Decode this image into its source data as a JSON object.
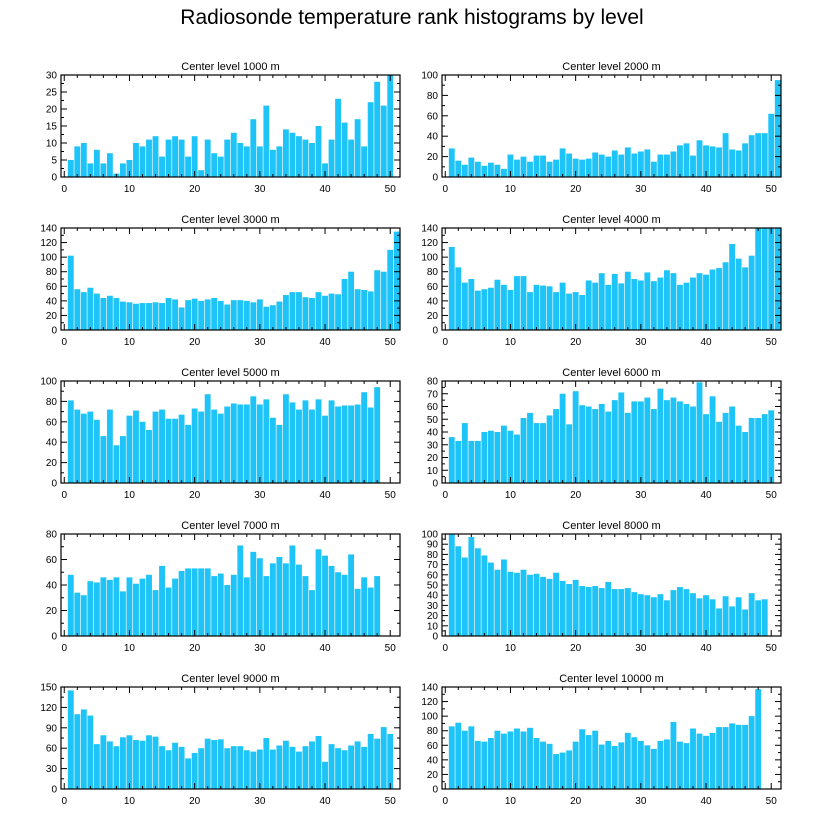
{
  "title": "Radiosonde temperature rank histograms by level",
  "colors": {
    "bar": "#1ec4f7",
    "axis": "#000000"
  },
  "chart_data": [
    {
      "type": "bar",
      "title": "Center level 1000 m",
      "xlim": [
        -0.5,
        51.5
      ],
      "ylim": [
        0,
        30
      ],
      "xticks": [
        0,
        10,
        20,
        30,
        40,
        50
      ],
      "yticks": [
        0,
        5,
        10,
        15,
        20,
        25,
        30
      ],
      "values": [
        5,
        9,
        10,
        4,
        8,
        4,
        7,
        1,
        4,
        5,
        10,
        9,
        11,
        12,
        6,
        11,
        12,
        11,
        6,
        12,
        2,
        11,
        7,
        6,
        11,
        13,
        10,
        9,
        17,
        9,
        21,
        8,
        9,
        14,
        13,
        12,
        11,
        10,
        15,
        4,
        11,
        23,
        16,
        11,
        17,
        9,
        22,
        28,
        21,
        30
      ]
    },
    {
      "type": "bar",
      "title": "Center level 2000 m",
      "xlim": [
        -0.5,
        51.5
      ],
      "ylim": [
        0,
        100
      ],
      "xticks": [
        0,
        10,
        20,
        30,
        40,
        50
      ],
      "yticks": [
        0,
        20,
        40,
        60,
        80,
        100
      ],
      "values": [
        28,
        16,
        12,
        19,
        15,
        11,
        14,
        12,
        8,
        22,
        17,
        20,
        15,
        21,
        21,
        15,
        17,
        28,
        23,
        18,
        17,
        18,
        24,
        22,
        20,
        26,
        22,
        29,
        23,
        25,
        27,
        15,
        22,
        22,
        25,
        31,
        33,
        21,
        36,
        31,
        30,
        29,
        43,
        27,
        26,
        33,
        41,
        43,
        43,
        62,
        95
      ]
    },
    {
      "type": "bar",
      "title": "Center level 3000 m",
      "xlim": [
        -0.5,
        51.5
      ],
      "ylim": [
        0,
        140
      ],
      "xticks": [
        0,
        10,
        20,
        30,
        40,
        50
      ],
      "yticks": [
        0,
        20,
        40,
        60,
        80,
        100,
        120,
        140
      ],
      "values": [
        102,
        56,
        52,
        58,
        50,
        44,
        47,
        44,
        39,
        38,
        36,
        37,
        37,
        38,
        37,
        44,
        42,
        31,
        41,
        43,
        40,
        42,
        44,
        40,
        35,
        41,
        41,
        40,
        38,
        42,
        32,
        34,
        39,
        48,
        52,
        52,
        45,
        44,
        52,
        47,
        50,
        49,
        70,
        80,
        56,
        55,
        53,
        82,
        80,
        110,
        135
      ]
    },
    {
      "type": "bar",
      "title": "Center level 4000 m",
      "xlim": [
        -0.5,
        51.5
      ],
      "ylim": [
        0,
        140
      ],
      "xticks": [
        0,
        10,
        20,
        30,
        40,
        50
      ],
      "yticks": [
        0,
        20,
        40,
        60,
        80,
        100,
        120,
        140
      ],
      "values": [
        114,
        86,
        65,
        70,
        54,
        56,
        58,
        69,
        62,
        55,
        74,
        74,
        52,
        62,
        61,
        60,
        52,
        65,
        50,
        52,
        48,
        68,
        65,
        78,
        62,
        77,
        64,
        80,
        70,
        68,
        79,
        67,
        72,
        82,
        78,
        62,
        65,
        72,
        78,
        76,
        83,
        85,
        93,
        118,
        98,
        86,
        102,
        140,
        141,
        140,
        141
      ]
    },
    {
      "type": "bar",
      "title": "Center level 5000 m",
      "xlim": [
        -0.5,
        51.5
      ],
      "ylim": [
        0,
        100
      ],
      "xticks": [
        0,
        10,
        20,
        30,
        40,
        50
      ],
      "yticks": [
        0,
        20,
        40,
        60,
        80,
        100
      ],
      "values": [
        81,
        72,
        68,
        70,
        62,
        46,
        72,
        37,
        46,
        66,
        71,
        60,
        52,
        70,
        72,
        63,
        63,
        67,
        57,
        73,
        70,
        87,
        72,
        68,
        75,
        78,
        77,
        77,
        85,
        77,
        82,
        64,
        57,
        87,
        79,
        72,
        81,
        72,
        82,
        66,
        81,
        75,
        76,
        76,
        77,
        89,
        74,
        94
      ]
    },
    {
      "type": "bar",
      "title": "Center level 6000 m",
      "xlim": [
        -0.5,
        51.5
      ],
      "ylim": [
        0,
        80
      ],
      "xticks": [
        0,
        10,
        20,
        30,
        40,
        50
      ],
      "yticks": [
        0,
        10,
        20,
        30,
        40,
        50,
        60,
        70,
        80
      ],
      "values": [
        36,
        33,
        47,
        33,
        33,
        40,
        41,
        40,
        45,
        41,
        38,
        51,
        55,
        47,
        47,
        53,
        58,
        70,
        46,
        72,
        61,
        60,
        58,
        62,
        56,
        65,
        71,
        55,
        64,
        64,
        67,
        58,
        74,
        65,
        67,
        64,
        62,
        60,
        79,
        54,
        68,
        48,
        55,
        60,
        45,
        40,
        51,
        51,
        54,
        57
      ]
    },
    {
      "type": "bar",
      "title": "Center level 7000 m",
      "xlim": [
        -0.5,
        51.5
      ],
      "ylim": [
        0,
        80
      ],
      "xticks": [
        0,
        10,
        20,
        30,
        40,
        50
      ],
      "yticks": [
        0,
        20,
        40,
        60,
        80
      ],
      "values": [
        48,
        34,
        32,
        43,
        42,
        46,
        44,
        46,
        35,
        46,
        41,
        45,
        48,
        36,
        55,
        38,
        45,
        51,
        53,
        53,
        53,
        53,
        47,
        49,
        40,
        48,
        71,
        46,
        66,
        61,
        47,
        57,
        62,
        57,
        71,
        56,
        47,
        36,
        68,
        63,
        55,
        50,
        48,
        64,
        37,
        46,
        38,
        47
      ]
    },
    {
      "type": "bar",
      "title": "Center level 8000 m",
      "xlim": [
        -0.5,
        51.5
      ],
      "ylim": [
        0,
        100
      ],
      "xticks": [
        0,
        10,
        20,
        30,
        40,
        50
      ],
      "yticks": [
        0,
        10,
        20,
        30,
        40,
        50,
        60,
        70,
        80,
        90,
        100
      ],
      "values": [
        100,
        88,
        77,
        97,
        86,
        79,
        72,
        65,
        75,
        63,
        62,
        65,
        60,
        61,
        58,
        56,
        62,
        54,
        51,
        55,
        49,
        48,
        49,
        47,
        53,
        46,
        46,
        47,
        43,
        41,
        40,
        38,
        41,
        35,
        45,
        48,
        46,
        42,
        37,
        40,
        36,
        27,
        39,
        29,
        38,
        26,
        42,
        35,
        36
      ]
    },
    {
      "type": "bar",
      "title": "Center level 9000 m",
      "xlim": [
        -0.5,
        51.5
      ],
      "ylim": [
        0,
        150
      ],
      "xticks": [
        0,
        10,
        20,
        30,
        40,
        50
      ],
      "yticks": [
        0,
        30,
        60,
        90,
        120,
        150
      ],
      "values": [
        145,
        110,
        117,
        108,
        66,
        79,
        70,
        63,
        76,
        79,
        72,
        71,
        79,
        77,
        63,
        57,
        68,
        62,
        45,
        53,
        60,
        74,
        72,
        73,
        60,
        63,
        63,
        57,
        55,
        58,
        75,
        58,
        64,
        71,
        62,
        55,
        63,
        70,
        78,
        40,
        66,
        60,
        57,
        64,
        70,
        62,
        81,
        74,
        91,
        81
      ]
    },
    {
      "type": "bar",
      "title": "Center level 10000 m",
      "xlim": [
        -0.5,
        51.5
      ],
      "ylim": [
        0,
        140
      ],
      "xticks": [
        0,
        10,
        20,
        30,
        40,
        50
      ],
      "yticks": [
        0,
        20,
        40,
        60,
        80,
        100,
        120,
        140
      ],
      "values": [
        86,
        91,
        80,
        86,
        66,
        65,
        70,
        80,
        76,
        79,
        83,
        79,
        84,
        70,
        65,
        62,
        48,
        50,
        53,
        65,
        82,
        74,
        80,
        61,
        66,
        59,
        64,
        77,
        71,
        66,
        60,
        55,
        66,
        68,
        92,
        65,
        63,
        83,
        76,
        73,
        77,
        85,
        85,
        90,
        88,
        88,
        100,
        137
      ]
    }
  ]
}
